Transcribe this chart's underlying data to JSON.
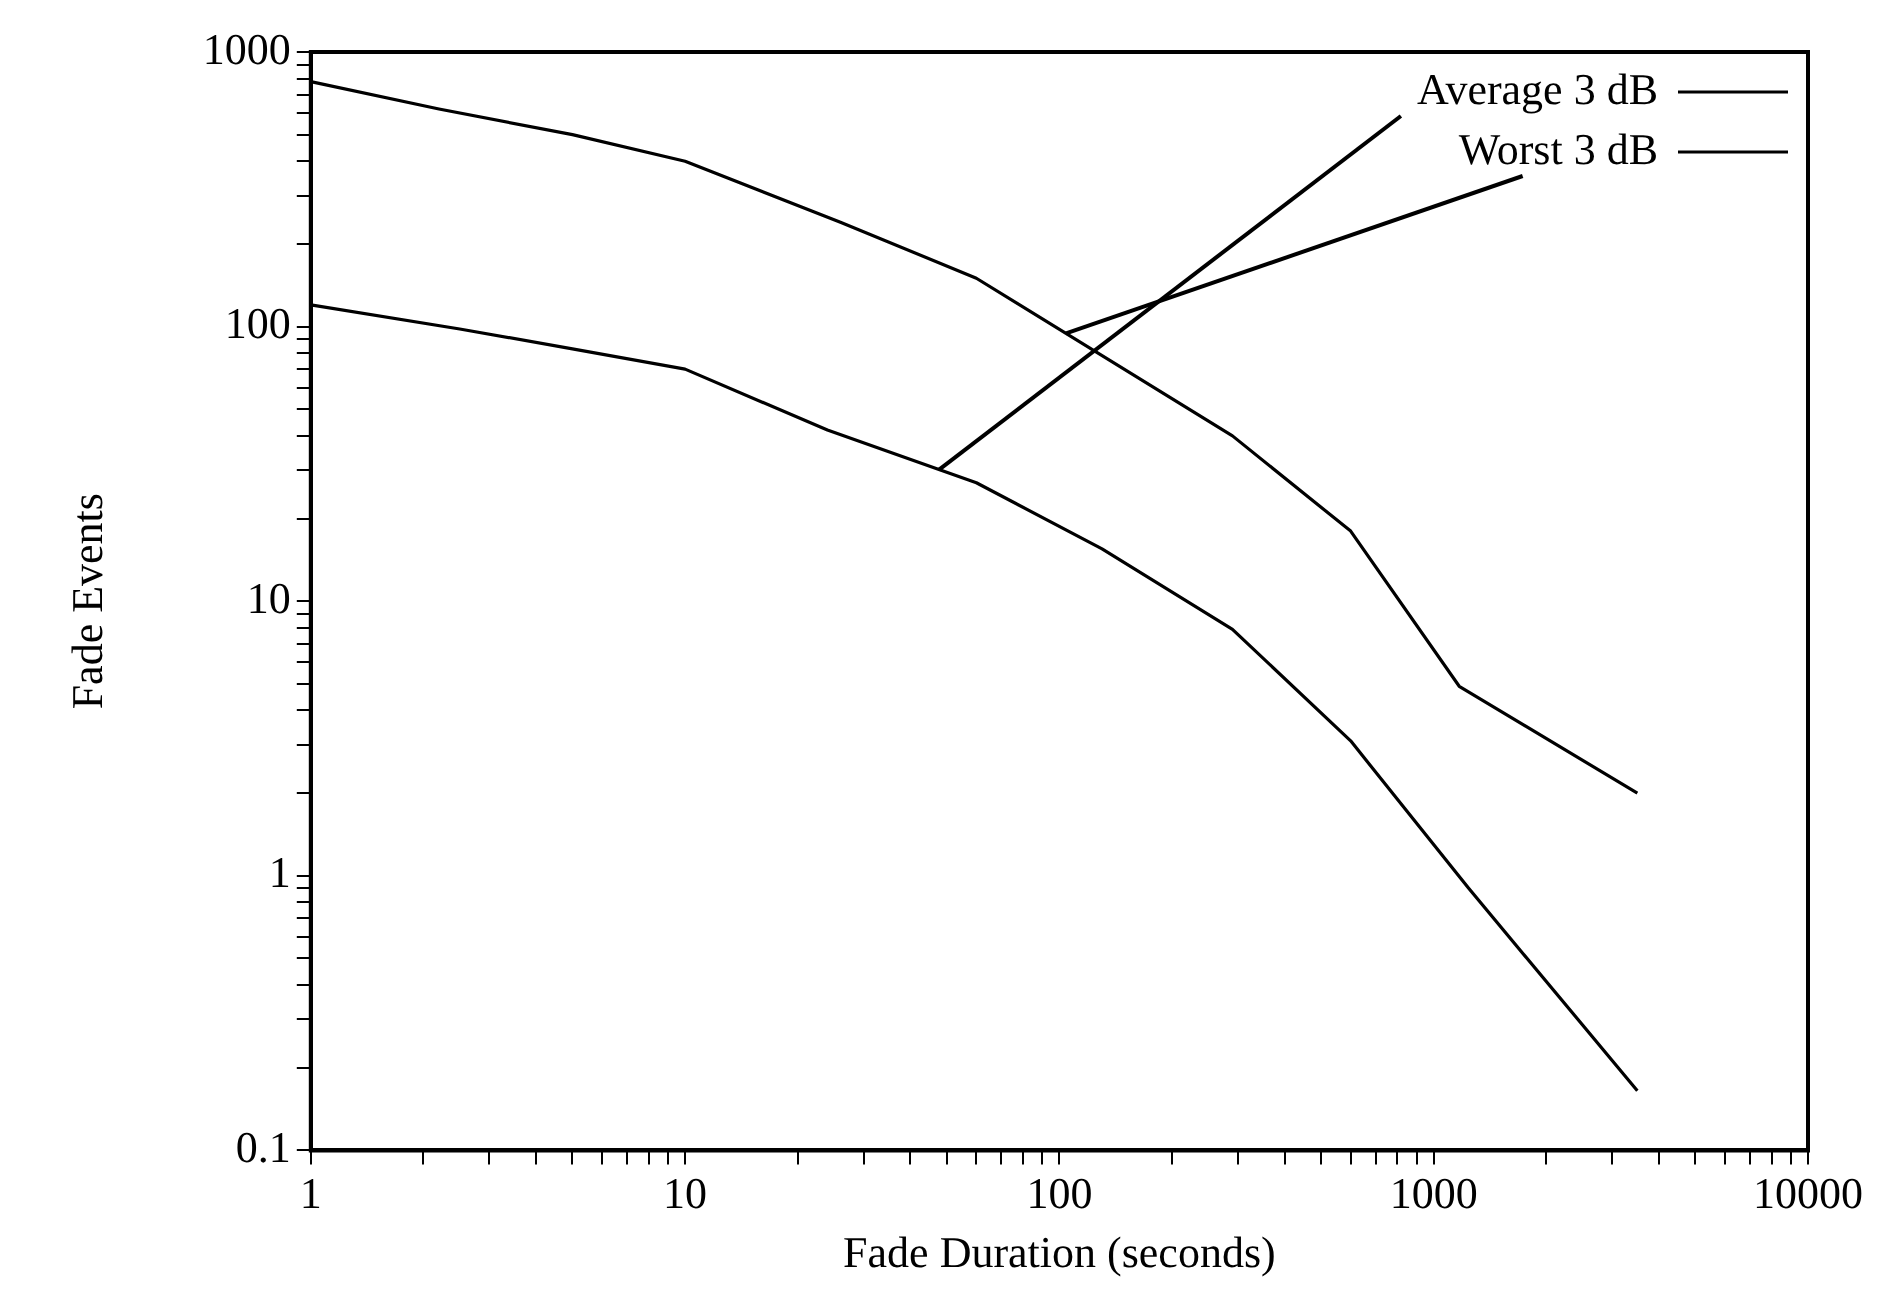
{
  "chart_data": {
    "type": "line",
    "xlabel": "Fade Duration (seconds)",
    "ylabel": "Fade Events",
    "log": "xy",
    "grid": false,
    "legend": "top right",
    "marker": "none",
    "line_style": "solid",
    "xlim": [
      1,
      10000
    ],
    "ylim": [
      0.1,
      1000
    ],
    "xticks": [
      1,
      {
        "value": 2,
        "label": null
      },
      {
        "value": 3,
        "label": null
      },
      {
        "value": 4,
        "label": null
      },
      {
        "value": 5,
        "label": null
      },
      {
        "value": 6,
        "label": null
      },
      {
        "value": 7,
        "label": null
      },
      {
        "value": 8,
        "label": null
      },
      {
        "value": 9,
        "label": null
      },
      10,
      {
        "value": 20,
        "label": null
      },
      {
        "value": 30,
        "label": null
      },
      {
        "value": 40,
        "label": null
      },
      {
        "value": 50,
        "label": null
      },
      {
        "value": 60,
        "label": null
      },
      {
        "value": 70,
        "label": null
      },
      {
        "value": 80,
        "label": null
      },
      {
        "value": 90,
        "label": null
      },
      100,
      {
        "value": 200,
        "label": null
      },
      {
        "value": 300,
        "label": null
      },
      {
        "value": 400,
        "label": null
      },
      {
        "value": 500,
        "label": null
      },
      {
        "value": 600,
        "label": null
      },
      {
        "value": 700,
        "label": null
      },
      {
        "value": 800,
        "label": null
      },
      {
        "value": 900,
        "label": null
      },
      1000,
      {
        "value": 2000,
        "label": null
      },
      {
        "value": 3000,
        "label": null
      },
      {
        "value": 4000,
        "label": null
      },
      {
        "value": 5000,
        "label": null
      },
      {
        "value": 6000,
        "label": null
      },
      {
        "value": 7000,
        "label": null
      },
      {
        "value": 8000,
        "label": null
      },
      {
        "value": 9000,
        "label": null
      },
      10000
    ],
    "yticks": [
      0.1,
      {
        "value": 0.2,
        "label": null
      },
      {
        "value": 0.3,
        "label": null
      },
      {
        "value": 0.4,
        "label": null
      },
      {
        "value": 0.5,
        "label": null
      },
      {
        "value": 0.6,
        "label": null
      },
      {
        "value": 0.7,
        "label": null
      },
      {
        "value": 0.8,
        "label": null
      },
      {
        "value": 0.9,
        "label": null
      },
      1,
      {
        "value": 2,
        "label": null
      },
      {
        "value": 3,
        "label": null
      },
      {
        "value": 4,
        "label": null
      },
      {
        "value": 5,
        "label": null
      },
      {
        "value": 6,
        "label": null
      },
      {
        "value": 7,
        "label": null
      },
      {
        "value": 8,
        "label": null
      },
      {
        "value": 9,
        "label": null
      },
      10,
      {
        "value": 20,
        "label": null
      },
      {
        "value": 30,
        "label": null
      },
      {
        "value": 40,
        "label": null
      },
      {
        "value": 50,
        "label": null
      },
      {
        "value": 60,
        "label": null
      },
      {
        "value": 70,
        "label": null
      },
      {
        "value": 80,
        "label": null
      },
      {
        "value": 90,
        "label": null
      },
      100,
      {
        "value": 200,
        "label": null
      },
      {
        "value": 300,
        "label": null
      },
      {
        "value": 400,
        "label": null
      },
      {
        "value": 500,
        "label": null
      },
      {
        "value": 600,
        "label": null
      },
      {
        "value": 700,
        "label": null
      },
      {
        "value": 800,
        "label": null
      },
      {
        "value": 900,
        "label": null
      },
      1000
    ],
    "series": [
      {
        "name": "Average 3 dB",
        "color": "#000000",
        "x": [
          1,
          2.5,
          5,
          10,
          24,
          60,
          130,
          290,
          600,
          1240,
          3500
        ],
        "values": [
          120,
          98,
          83,
          70,
          42,
          27,
          15.5,
          7.9,
          3.1,
          0.9,
          0.165
        ]
      },
      {
        "name": "Worst 3 dB",
        "color": "#000000",
        "x": [
          1,
          2.2,
          5,
          10,
          26,
          60,
          290,
          600,
          1170,
          3500
        ],
        "values": [
          780,
          620,
          500,
          400,
          240,
          150,
          40,
          18,
          4.9,
          2.0
        ]
      }
    ]
  }
}
